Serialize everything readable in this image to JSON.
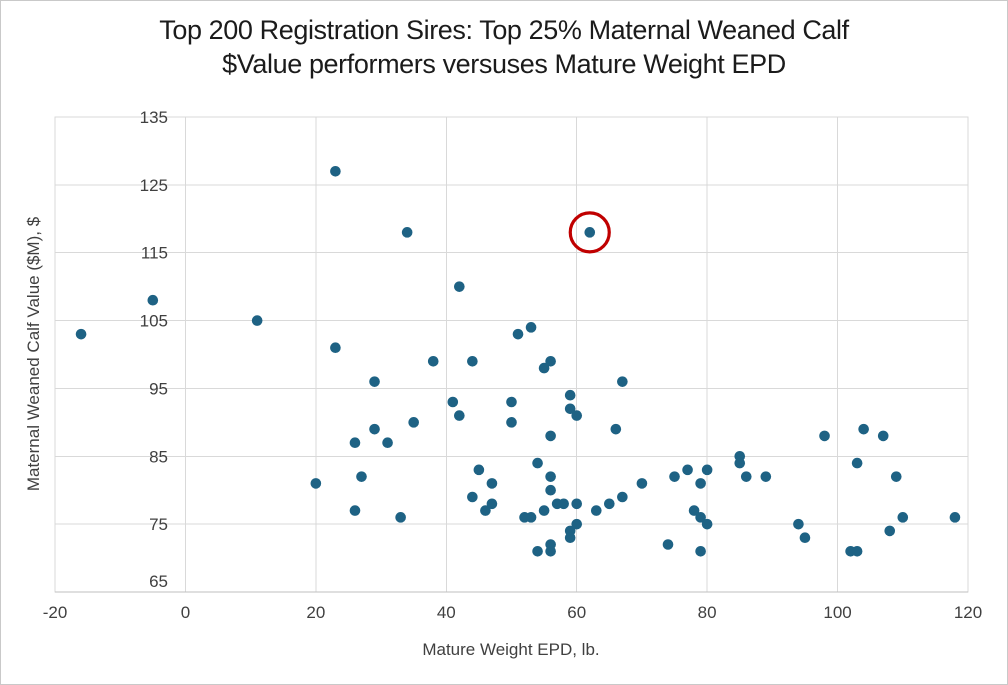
{
  "title": {
    "line1": "Top 200 Registration Sires: Top 25% Maternal Weaned Calf",
    "line2": "$Value performers versuses Mature Weight EPD"
  },
  "chart_data": {
    "type": "scatter",
    "xlabel": "Mature Weight EPD, lb.",
    "ylabel": "Maternal Weaned Calf Value ($M), $",
    "xlim": [
      -20,
      120
    ],
    "ylim": [
      65,
      135
    ],
    "xticks": [
      -20,
      0,
      20,
      40,
      60,
      80,
      100,
      120
    ],
    "yticks": [
      65,
      75,
      85,
      95,
      105,
      115,
      125,
      135
    ],
    "grid": true,
    "legend": "none",
    "points": [
      [
        -16,
        103
      ],
      [
        -5,
        108
      ],
      [
        11,
        105
      ],
      [
        23,
        127
      ],
      [
        23,
        101
      ],
      [
        34,
        118
      ],
      [
        42,
        110
      ],
      [
        51,
        103
      ],
      [
        53,
        104
      ],
      [
        62,
        118
      ],
      [
        38,
        99
      ],
      [
        44,
        99
      ],
      [
        55,
        98
      ],
      [
        56,
        99
      ],
      [
        29,
        96
      ],
      [
        67,
        96
      ],
      [
        41,
        93
      ],
      [
        42,
        91
      ],
      [
        50,
        93
      ],
      [
        50,
        90
      ],
      [
        59,
        94
      ],
      [
        59,
        92
      ],
      [
        60,
        91
      ],
      [
        35,
        90
      ],
      [
        29,
        89
      ],
      [
        26,
        87
      ],
      [
        31,
        87
      ],
      [
        66,
        89
      ],
      [
        56,
        88
      ],
      [
        98,
        88
      ],
      [
        104,
        89
      ],
      [
        107,
        88
      ],
      [
        85,
        85
      ],
      [
        85,
        84
      ],
      [
        54,
        84
      ],
      [
        103,
        84
      ],
      [
        20,
        81
      ],
      [
        27,
        82
      ],
      [
        45,
        83
      ],
      [
        47,
        81
      ],
      [
        56,
        82
      ],
      [
        56,
        80
      ],
      [
        44,
        79
      ],
      [
        67,
        79
      ],
      [
        70,
        81
      ],
      [
        65,
        78
      ],
      [
        63,
        77
      ],
      [
        57,
        78
      ],
      [
        58,
        78
      ],
      [
        60,
        78
      ],
      [
        75,
        82
      ],
      [
        77,
        83
      ],
      [
        80,
        83
      ],
      [
        79,
        81
      ],
      [
        86,
        82
      ],
      [
        89,
        82
      ],
      [
        109,
        82
      ],
      [
        26,
        77
      ],
      [
        33,
        76
      ],
      [
        46,
        77
      ],
      [
        47,
        78
      ],
      [
        52,
        76
      ],
      [
        53,
        76
      ],
      [
        55,
        77
      ],
      [
        60,
        75
      ],
      [
        59,
        74
      ],
      [
        78,
        77
      ],
      [
        79,
        76
      ],
      [
        80,
        75
      ],
      [
        94,
        75
      ],
      [
        110,
        76
      ],
      [
        118,
        76
      ],
      [
        59,
        73
      ],
      [
        56,
        72
      ],
      [
        56,
        71
      ],
      [
        54,
        71
      ],
      [
        74,
        72
      ],
      [
        79,
        71
      ],
      [
        95,
        73
      ],
      [
        102,
        71
      ],
      [
        103,
        71
      ],
      [
        108,
        74
      ]
    ],
    "annotation": {
      "type": "circle-highlight",
      "x": 62,
      "y": 118,
      "radius_px": 19.5
    },
    "colors": {
      "dot": "#1E6284",
      "annotation": "#C00000",
      "gridline": "#D9D9D9",
      "axis_line": "#BFBFBF",
      "tick_text": "#404040",
      "title_text": "#1B1B1B"
    }
  }
}
